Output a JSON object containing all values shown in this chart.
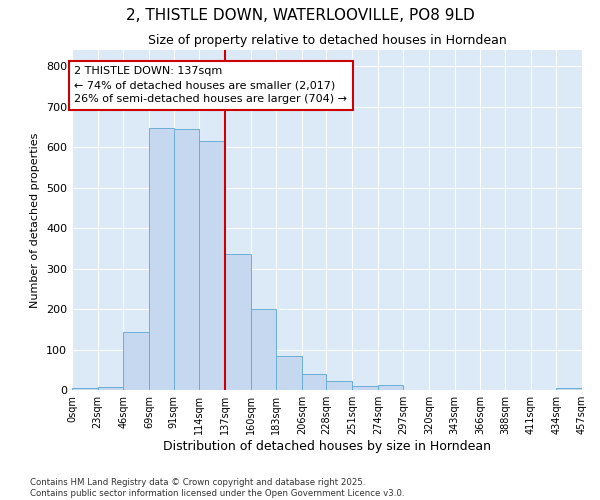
{
  "title": "2, THISTLE DOWN, WATERLOOVILLE, PO8 9LD",
  "subtitle": "Size of property relative to detached houses in Horndean",
  "xlabel": "Distribution of detached houses by size in Horndean",
  "ylabel": "Number of detached properties",
  "bar_color": "#c5d8f0",
  "bar_edge_color": "#6baed6",
  "background_color": "#dce9f7",
  "grid_color": "#ffffff",
  "vline_x": 137,
  "vline_color": "#cc0000",
  "annotation_text": "2 THISTLE DOWN: 137sqm\n← 74% of detached houses are smaller (2,017)\n26% of semi-detached houses are larger (704) →",
  "bin_edges": [
    0,
    23,
    46,
    69,
    91,
    114,
    137,
    160,
    183,
    206,
    228,
    251,
    274,
    297,
    320,
    343,
    366,
    388,
    411,
    434,
    457
  ],
  "bar_heights": [
    5,
    8,
    143,
    648,
    645,
    614,
    335,
    199,
    84,
    40,
    23,
    10,
    12,
    0,
    0,
    0,
    0,
    0,
    0,
    5
  ],
  "ylim": [
    0,
    840
  ],
  "yticks": [
    0,
    100,
    200,
    300,
    400,
    500,
    600,
    700,
    800
  ],
  "footnote": "Contains HM Land Registry data © Crown copyright and database right 2025.\nContains public sector information licensed under the Open Government Licence v3.0.",
  "tick_labels": [
    "0sqm",
    "23sqm",
    "46sqm",
    "69sqm",
    "91sqm",
    "114sqm",
    "137sqm",
    "160sqm",
    "183sqm",
    "206sqm",
    "228sqm",
    "251sqm",
    "274sqm",
    "297sqm",
    "320sqm",
    "343sqm",
    "366sqm",
    "388sqm",
    "411sqm",
    "434sqm",
    "457sqm"
  ]
}
